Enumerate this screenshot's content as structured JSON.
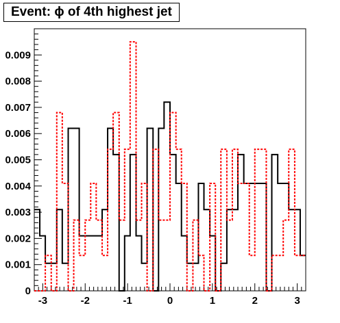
{
  "chart_data": {
    "type": "step",
    "title": "Event: ϕ of 4th highest jet",
    "xlabel": "",
    "ylabel": "",
    "xlim": [
      -3.2,
      3.2
    ],
    "ylim": [
      0,
      0.01
    ],
    "x_ticks": [
      "-3",
      "-2",
      "-1",
      "0",
      "1",
      "2",
      "3"
    ],
    "y_ticks": [
      "0",
      "0.001",
      "0.002",
      "0.003",
      "0.004",
      "0.005",
      "0.006",
      "0.007",
      "0.008",
      "0.009"
    ],
    "bin_edges": [
      -3.2,
      -3.07,
      -2.94,
      -2.8,
      -2.67,
      -2.54,
      -2.4,
      -2.27,
      -2.14,
      -2.0,
      -1.87,
      -1.74,
      -1.6,
      -1.47,
      -1.34,
      -1.2,
      -1.07,
      -0.94,
      -0.8,
      -0.67,
      -0.54,
      -0.4,
      -0.27,
      -0.14,
      0.0,
      0.14,
      0.27,
      0.4,
      0.54,
      0.67,
      0.8,
      0.94,
      1.07,
      1.2,
      1.34,
      1.47,
      1.6,
      1.74,
      1.87,
      2.0,
      2.14,
      2.27,
      2.4,
      2.54,
      2.67,
      2.8,
      2.94,
      3.07,
      3.2
    ],
    "series": [
      {
        "color": "#000000",
        "style": "solid",
        "values": [
          0.0031,
          0.0021,
          0.00105,
          0.00105,
          0.0031,
          0.00105,
          0.0062,
          0.0062,
          0.0021,
          0.0021,
          0.0021,
          0.0021,
          0.0031,
          0.0062,
          0.0052,
          0.0,
          0.0021,
          0.0052,
          0.0021,
          0.00105,
          0.0062,
          0.0,
          0.0062,
          0.0072,
          0.0052,
          0.0041,
          0.0021,
          0.00105,
          0.00105,
          0.0041,
          0.0031,
          0.0021,
          0.0,
          0.00105,
          0.0031,
          0.0031,
          0.0052,
          0.0041,
          0.0041,
          0.0041,
          0.0041,
          0.0,
          0.0052,
          0.0041,
          0.0041,
          0.0031,
          0.0031,
          0.00135
        ]
      },
      {
        "color": "#ff0000",
        "style": "dotted",
        "values": [
          0.0,
          0.0,
          0.00135,
          0.0,
          0.0068,
          0.0041,
          0.0,
          0.0027,
          0.00135,
          0.0027,
          0.0041,
          0.0027,
          0.00135,
          0.0054,
          0.0068,
          0.0027,
          0.0054,
          0.0095,
          0.0027,
          0.0041,
          0.0,
          0.0054,
          0.0027,
          0.0027,
          0.0068,
          0.0054,
          0.0041,
          0.0,
          0.0027,
          0.00135,
          0.0,
          0.0041,
          0.0,
          0.0054,
          0.0027,
          0.0054,
          0.0041,
          0.0041,
          0.00135,
          0.0054,
          0.0054,
          0.0,
          0.00135,
          0.00135,
          0.0027,
          0.0054,
          0.00135,
          0.00135
        ]
      }
    ]
  }
}
